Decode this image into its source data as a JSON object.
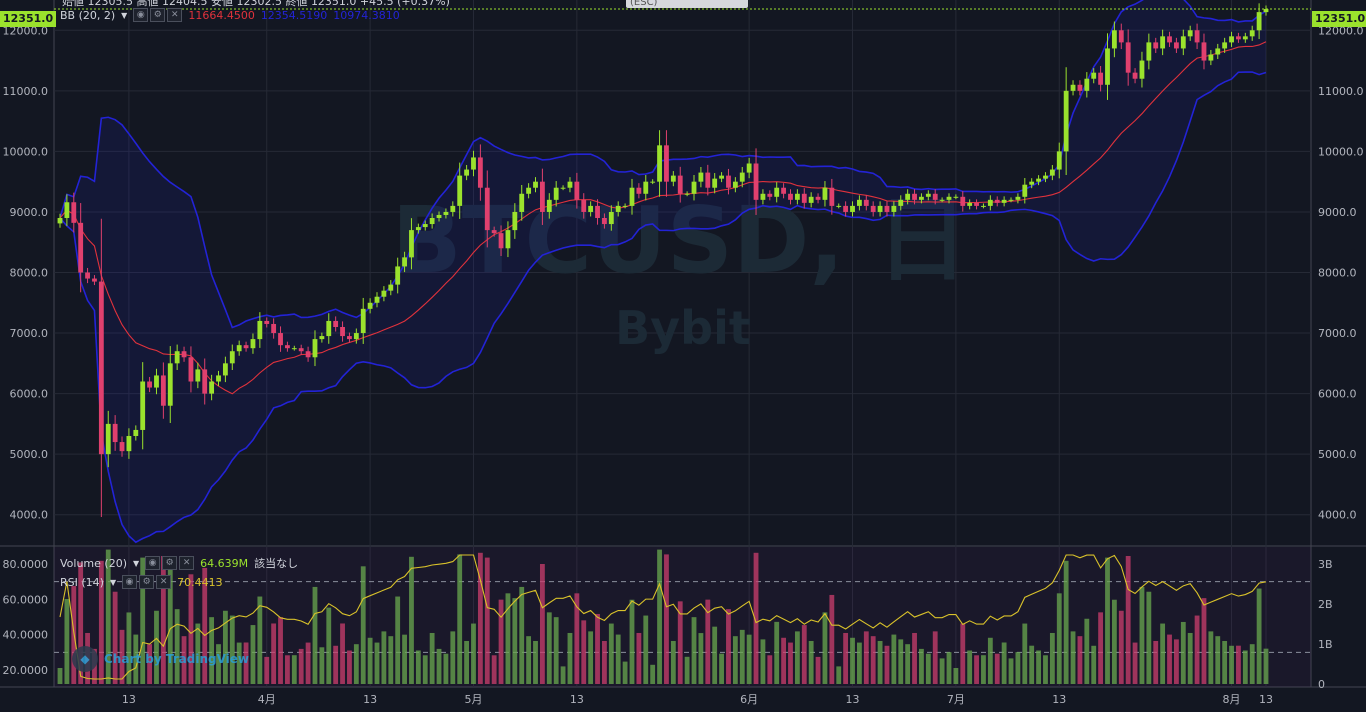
{
  "chart_data": {
    "type": "candlestick",
    "symbol": "BTCUSD",
    "interval": "日",
    "exchange": "Bybit",
    "ohlc_header": "始値 12305.5 高値 12404.5 安値 12302.5 終値 12351.0 +45.5 (+0.37%)",
    "last_price": "12351.0",
    "price_ylim": [
      3500,
      12500
    ],
    "price_ticks": [
      "12000.0",
      "11000.0",
      "10000.0",
      "9000.0",
      "8000.0",
      "7000.0",
      "6000.0",
      "5000.0",
      "4000.0"
    ],
    "x_ticks": [
      "13",
      "4月",
      "13",
      "5月",
      "13",
      "6月",
      "13",
      "7月",
      "13",
      "8月",
      "13"
    ],
    "bb": {
      "label": "BB (20, 2)",
      "basis": "11664.4500",
      "upper": "12354.5190",
      "lower": "10974.3810"
    },
    "closes": [
      8900,
      9160,
      8820,
      8000,
      7900,
      7850,
      5000,
      5500,
      5200,
      5050,
      5300,
      5400,
      6200,
      6100,
      6300,
      5800,
      6500,
      6700,
      6600,
      6200,
      6400,
      6000,
      6200,
      6300,
      6500,
      6700,
      6800,
      6750,
      6900,
      7200,
      7150,
      7000,
      6800,
      6750,
      6750,
      6700,
      6600,
      6900,
      6950,
      7200,
      7100,
      6950,
      6900,
      7000,
      7400,
      7500,
      7600,
      7700,
      7800,
      8100,
      8250,
      8700,
      8750,
      8800,
      8900,
      8950,
      9000,
      9100,
      9600,
      9700,
      9900,
      9400,
      8700,
      8650,
      8400,
      8700,
      9000,
      9300,
      9400,
      9500,
      9000,
      9200,
      9400,
      9400,
      9500,
      9200,
      9000,
      9100,
      8900,
      8800,
      9000,
      9100,
      9100,
      9400,
      9300,
      9500,
      9500,
      10100,
      9500,
      9600,
      9300,
      9300,
      9500,
      9650,
      9400,
      9550,
      9600,
      9400,
      9500,
      9650,
      9800,
      9200,
      9300,
      9250,
      9400,
      9300,
      9200,
      9300,
      9150,
      9250,
      9200,
      9400,
      9100,
      9100,
      9000,
      9100,
      9200,
      9100,
      9000,
      9100,
      9000,
      9100,
      9200,
      9300,
      9200,
      9250,
      9300,
      9200,
      9200,
      9250,
      9250,
      9100,
      9150,
      9100,
      9100,
      9200,
      9150,
      9200,
      9200,
      9250,
      9450,
      9500,
      9550,
      9600,
      9700,
      10000,
      11000,
      11100,
      11000,
      11200,
      11300,
      11100,
      11700,
      12000,
      11800,
      11300,
      11200,
      11500,
      11800,
      11700,
      11900,
      11800,
      11700,
      11900,
      12000,
      11800,
      11500,
      11600,
      11700,
      11800,
      11900,
      11850,
      11900,
      12000,
      12300,
      12351
    ],
    "volume": {
      "label": "Volume (20)",
      "value": "64.639M",
      "note": "該当なし",
      "ticks": [
        "3B",
        "2B",
        "1B",
        "0"
      ]
    },
    "rsi": {
      "label": "RSI (14)",
      "value": "70.4413",
      "ticks": [
        "80.0000",
        "60.0000",
        "40.0000",
        "20.0000"
      ]
    }
  },
  "ui": {
    "esc_label": "(ESC)",
    "watermark": "Chart by TradingView"
  },
  "colors": {
    "up": "#9be22d",
    "down": "#e0406e",
    "bb_basis": "#e0323c",
    "bb_band": "#2323d6",
    "rsi": "#d9c22a",
    "grid": "#262a36",
    "bg": "#131722"
  }
}
